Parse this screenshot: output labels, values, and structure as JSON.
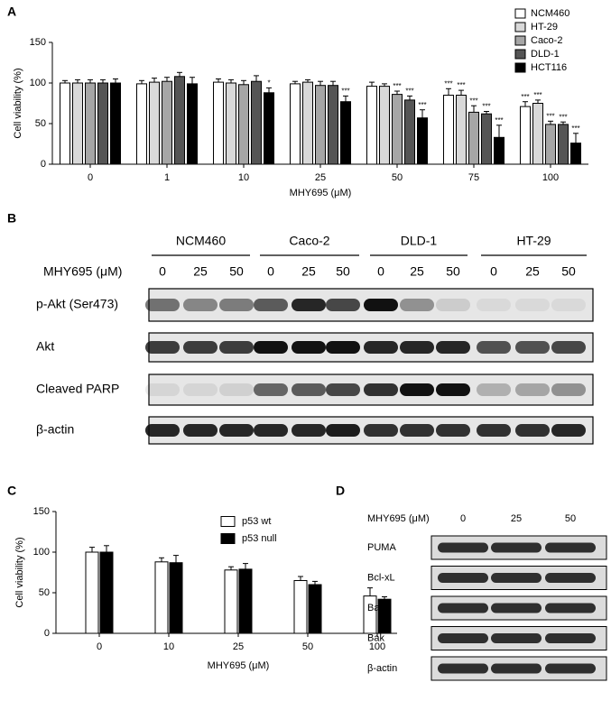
{
  "panel_labels": [
    "A",
    "B",
    "C",
    "D"
  ],
  "chart_data": [
    {
      "type": "bar",
      "categories": [
        0,
        1,
        10,
        25,
        50,
        75,
        100
      ],
      "x_label": "MHY695 (μM)",
      "y_label": "Cell viability (%)",
      "ylim": [
        0,
        150
      ],
      "yticks": [
        0,
        50,
        100,
        150
      ],
      "legend": "top-right",
      "series": [
        {
          "name": "NCM460",
          "color": "#ffffff",
          "values": [
            100,
            99,
            101,
            99,
            96,
            85,
            71
          ],
          "errors": [
            3,
            4,
            4,
            3,
            5,
            8,
            6
          ],
          "significance": [
            null,
            null,
            null,
            null,
            null,
            "***",
            "***"
          ]
        },
        {
          "name": "HT-29",
          "color": "#d9d9d9",
          "values": [
            100,
            101,
            100,
            101,
            96,
            85,
            75
          ],
          "errors": [
            4,
            5,
            4,
            3,
            3,
            6,
            4
          ],
          "significance": [
            null,
            null,
            null,
            null,
            null,
            "***",
            "***"
          ]
        },
        {
          "name": "Caco-2",
          "color": "#a6a6a6",
          "values": [
            100,
            102,
            98,
            97,
            86,
            64,
            49
          ],
          "errors": [
            4,
            5,
            5,
            5,
            4,
            8,
            4
          ],
          "significance": [
            null,
            null,
            null,
            null,
            "***",
            "***",
            "***"
          ]
        },
        {
          "name": "DLD-1",
          "color": "#555555",
          "values": [
            100,
            108,
            102,
            97,
            79,
            62,
            49
          ],
          "errors": [
            4,
            5,
            7,
            5,
            5,
            3,
            3
          ],
          "significance": [
            null,
            null,
            null,
            null,
            "***",
            "***",
            "***"
          ]
        },
        {
          "name": "HCT116",
          "color": "#000000",
          "values": [
            100,
            99,
            88,
            77,
            57,
            33,
            26
          ],
          "errors": [
            5,
            8,
            6,
            7,
            10,
            15,
            12
          ],
          "significance": [
            null,
            null,
            "*",
            "***",
            "***",
            "***",
            "***"
          ]
        }
      ]
    },
    {
      "type": "bar",
      "categories": [
        0,
        10,
        25,
        50,
        100
      ],
      "x_label": "MHY695 (μM)",
      "y_label": "Cell viability (%)",
      "ylim": [
        0,
        150
      ],
      "yticks": [
        0,
        50,
        100,
        150
      ],
      "legend": "top-right",
      "series": [
        {
          "name": "p53 wt",
          "color": "#ffffff",
          "values": [
            100,
            88,
            78,
            65,
            46
          ],
          "errors": [
            6,
            5,
            4,
            5,
            10
          ]
        },
        {
          "name": "p53 null",
          "color": "#000000",
          "values": [
            100,
            87,
            79,
            60,
            42
          ],
          "errors": [
            8,
            9,
            7,
            4,
            3
          ]
        }
      ]
    }
  ],
  "blot_b": {
    "dose_label": "MHY695 (μM)",
    "groups": [
      "NCM460",
      "Caco-2",
      "DLD-1",
      "HT-29"
    ],
    "doses": [
      [
        "0",
        "25",
        "50"
      ],
      [
        "0",
        "25",
        "50"
      ],
      [
        "0",
        "25",
        "50"
      ],
      [
        "0",
        "25",
        "50"
      ]
    ],
    "rows": [
      "p-Akt (Ser473)",
      "Akt",
      "Cleaved PARP",
      "β-actin"
    ]
  },
  "blot_d": {
    "dose_label": "MHY695 (μM)",
    "doses": [
      "0",
      "25",
      "50"
    ],
    "rows": [
      "PUMA",
      "Bcl-xL",
      "Bax",
      "Bak",
      "β-actin"
    ]
  }
}
